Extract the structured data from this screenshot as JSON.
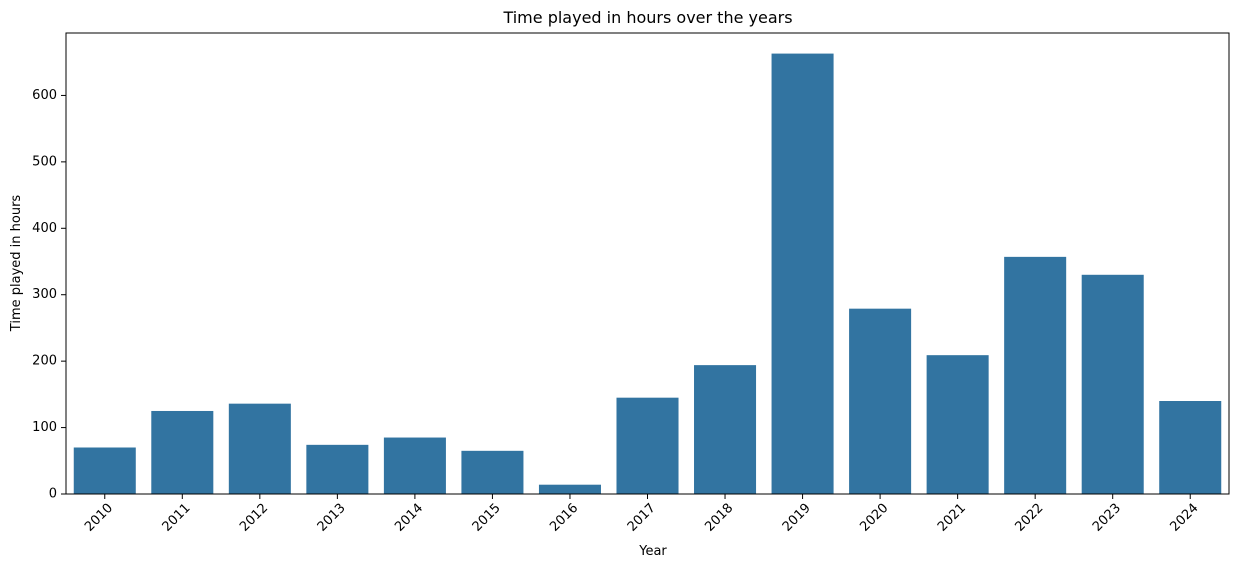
{
  "chart_data": {
    "type": "bar",
    "title": "Time played in hours over the years",
    "xlabel": "Year",
    "ylabel": "Time played in hours",
    "categories": [
      "2010",
      "2011",
      "2012",
      "2013",
      "2014",
      "2015",
      "2016",
      "2017",
      "2018",
      "2019",
      "2020",
      "2021",
      "2022",
      "2023",
      "2024"
    ],
    "values": [
      70,
      125,
      136,
      74,
      85,
      65,
      14,
      145,
      194,
      663,
      279,
      209,
      357,
      330,
      140
    ],
    "ylim": [
      0,
      694
    ],
    "yticks": [
      0,
      100,
      200,
      300,
      400,
      500,
      600
    ],
    "bar_color": "#3274a1",
    "grid": false,
    "xtick_rotation": "45deg"
  }
}
